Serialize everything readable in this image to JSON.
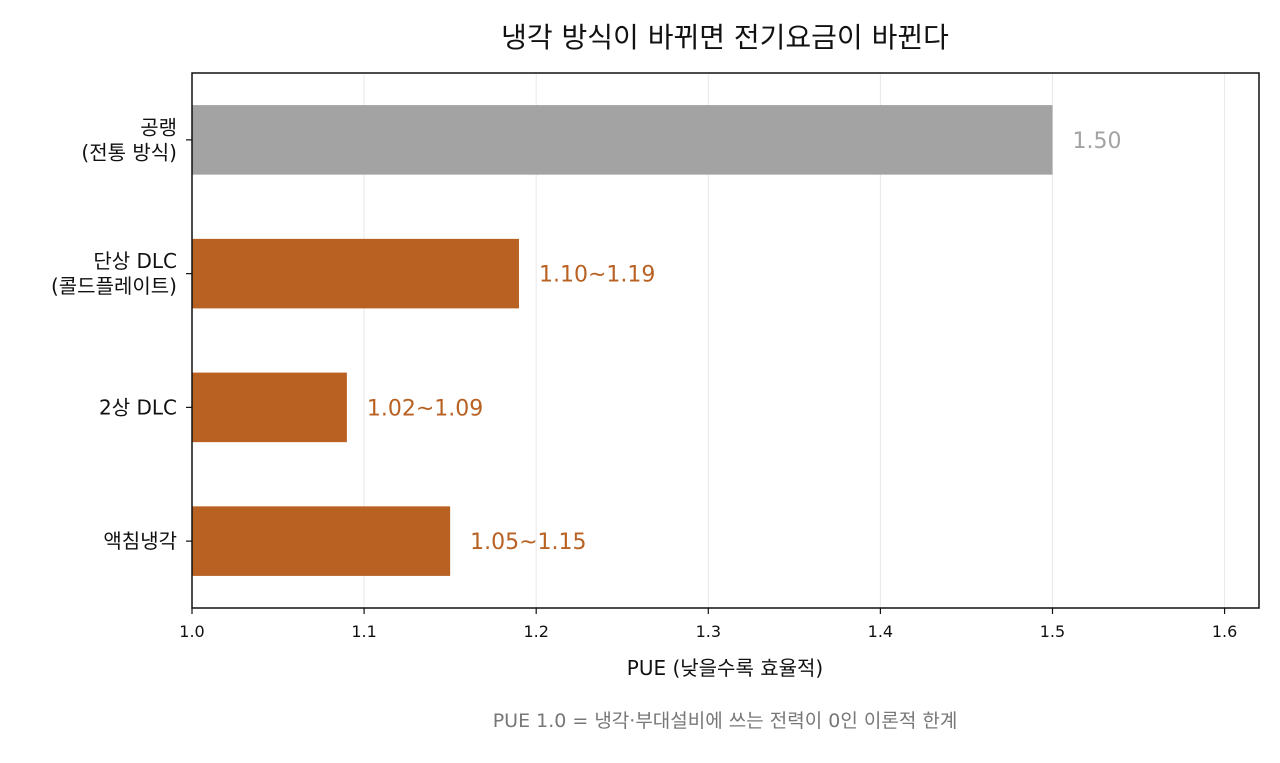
{
  "colors": {
    "baseline_bar": "#a3a3a3",
    "baseline_label": "#a3a3a3",
    "dlc_bar": "#b86122",
    "dlc_label": "#b86122",
    "grid": "#e8e8e8",
    "axis": "#111111",
    "note": "#777777"
  },
  "chart_data": {
    "type": "bar",
    "orientation": "horizontal",
    "title": "냉각 방식이 바뀌면 전기요금이 바뀐다",
    "xlabel": "PUE (낮을수록 효율적)",
    "ylabel": "",
    "xlim": [
      1.0,
      1.62
    ],
    "x_ticks": [
      "1.0",
      "1.1",
      "1.2",
      "1.3",
      "1.4",
      "1.5",
      "1.6"
    ],
    "grid": "vertical",
    "categories": [
      [
        "공랭",
        "(전통 방식)"
      ],
      [
        "단상 DLC",
        "(콜드플레이트)"
      ],
      [
        "2상 DLC"
      ],
      [
        "액침냉각"
      ]
    ],
    "values": [
      1.5,
      1.19,
      1.09,
      1.15
    ],
    "value_labels": [
      "1.50",
      "1.10~1.19",
      "1.02~1.09",
      "1.05~1.15"
    ],
    "bar_color_keys": [
      "baseline",
      "dlc",
      "dlc",
      "dlc"
    ],
    "note": "PUE 1.0 = 냉각·부대설비에 쓰는 전력이 0인 이론적 한계"
  }
}
